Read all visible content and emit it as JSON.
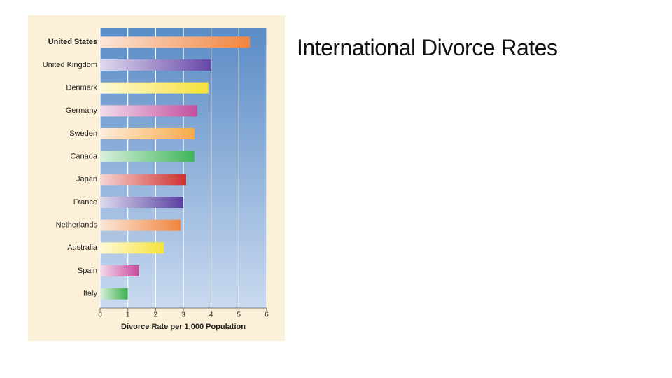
{
  "title": "International Divorce Rates",
  "chart_data": {
    "type": "bar",
    "orientation": "horizontal",
    "categories": [
      "United States",
      "United Kingdom",
      "Denmark",
      "Germany",
      "Sweden",
      "Canada",
      "Japan",
      "France",
      "Netherlands",
      "Australia",
      "Spain",
      "Italy"
    ],
    "values": [
      5.4,
      4.0,
      3.9,
      3.5,
      3.4,
      3.4,
      3.1,
      3.0,
      2.9,
      2.3,
      1.4,
      1.0
    ],
    "colors": [
      "#f0843f",
      "#6546a8",
      "#f5e03a",
      "#c24f9e",
      "#f7a94a",
      "#3fb559",
      "#d0302e",
      "#5a41a2",
      "#f0853f",
      "#f7e23a",
      "#c84a9c",
      "#3eb04e"
    ],
    "xlabel": "Divorce Rate per 1,000 Population",
    "xlim": [
      0,
      6
    ],
    "xticks": [
      0,
      1,
      2,
      3,
      4,
      5,
      6
    ],
    "grid": true
  }
}
